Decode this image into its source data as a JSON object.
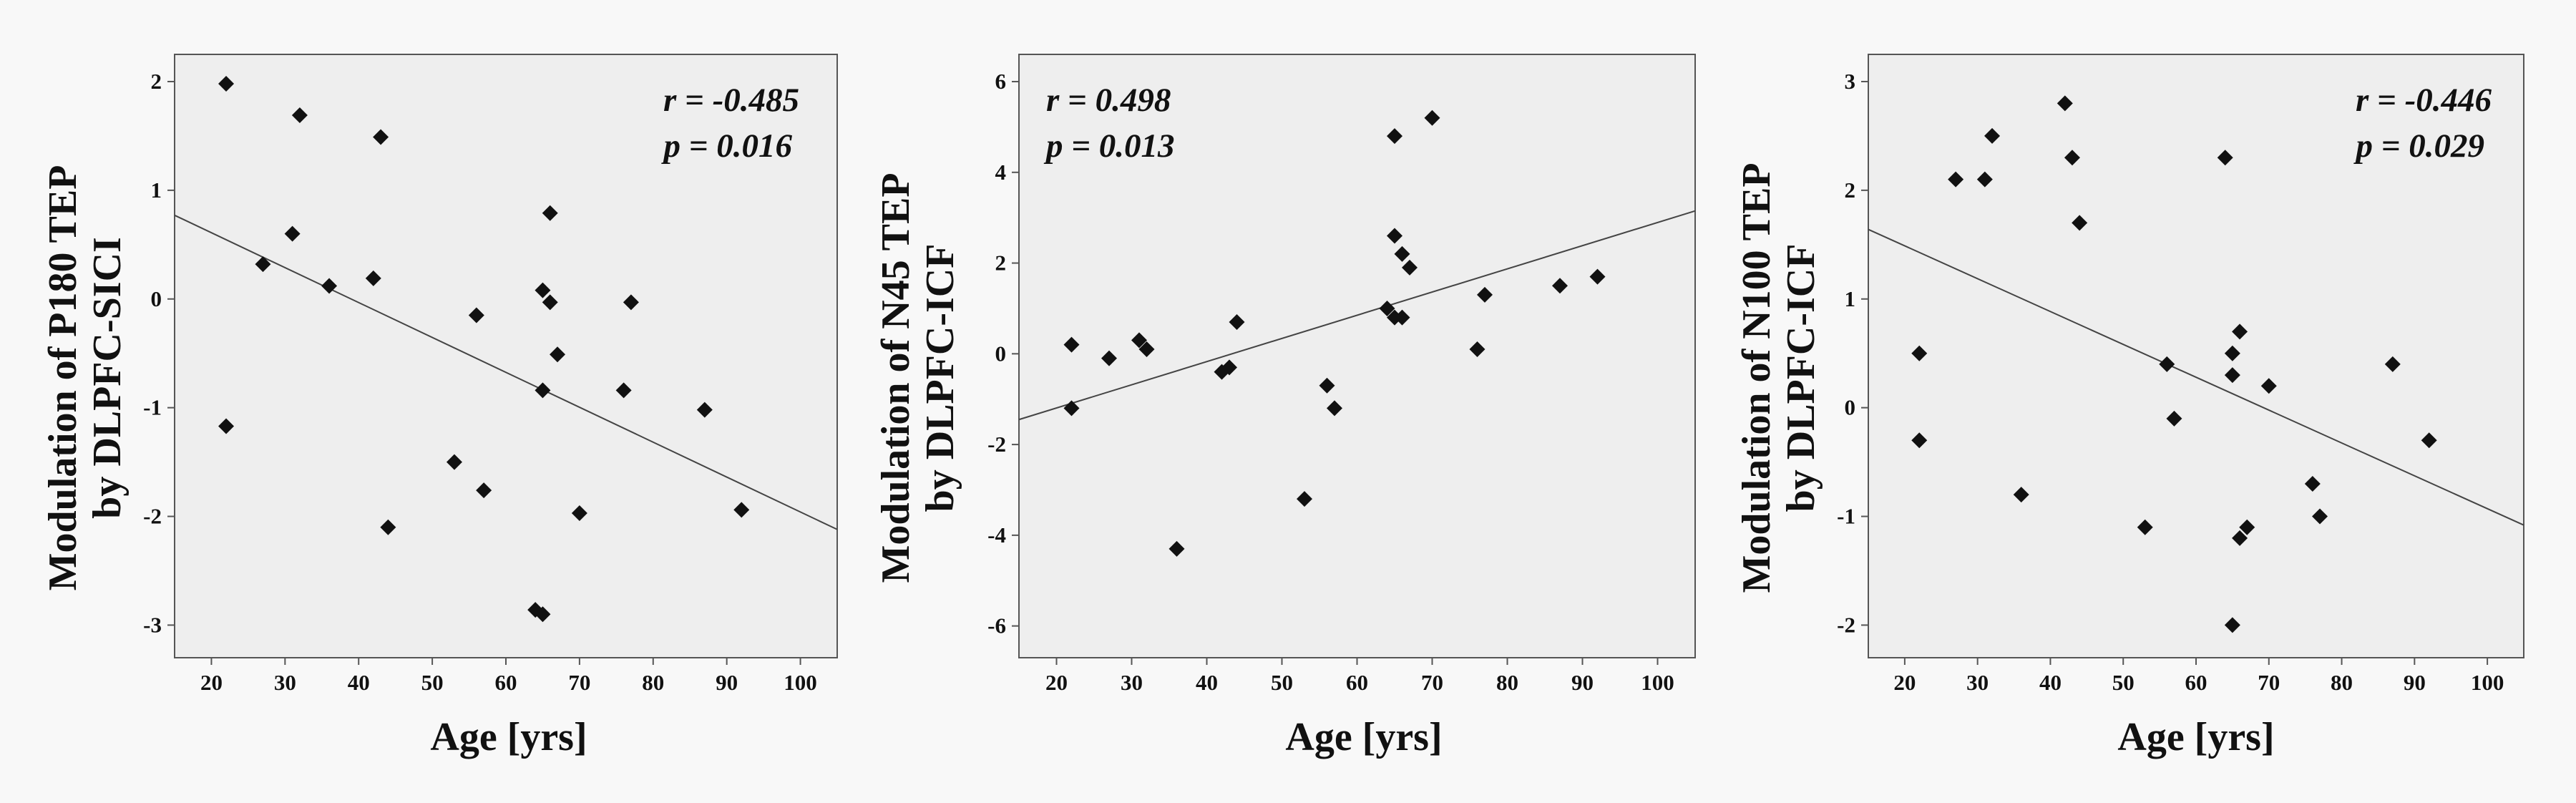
{
  "colors": {
    "page_background": "#f8f8f8",
    "plot_background": "#eeeeee",
    "marker": "#111111",
    "axis": "#555555",
    "fit_line": "#444444"
  },
  "chart_data": [
    {
      "type": "scatter",
      "title": "",
      "xlabel": "Age [yrs]",
      "ylabel_lines": [
        "Modulation of P180 TEP",
        "by DLPFC-SICI"
      ],
      "xlim": [
        15,
        105
      ],
      "ylim": [
        -3.3,
        2.25
      ],
      "xticks": [
        20,
        30,
        40,
        50,
        60,
        70,
        80,
        90,
        100
      ],
      "yticks": [
        -3,
        -2,
        -1,
        0,
        1,
        2
      ],
      "grid": false,
      "marker": "diamond",
      "annotation_lines": [
        "r = -0.485",
        "p = 0.016"
      ],
      "annotation_position": "top-right",
      "fit_line": {
        "x": [
          15,
          105
        ],
        "y": [
          0.77,
          -2.12
        ]
      },
      "points": [
        {
          "x": 22,
          "y": 1.98
        },
        {
          "x": 22,
          "y": -1.17
        },
        {
          "x": 27,
          "y": 0.32
        },
        {
          "x": 31,
          "y": 0.6
        },
        {
          "x": 32,
          "y": 1.69
        },
        {
          "x": 36,
          "y": 0.12
        },
        {
          "x": 42,
          "y": 0.19
        },
        {
          "x": 43,
          "y": 1.49
        },
        {
          "x": 44,
          "y": -2.1
        },
        {
          "x": 53,
          "y": -1.5
        },
        {
          "x": 56,
          "y": -0.15
        },
        {
          "x": 57,
          "y": -1.76
        },
        {
          "x": 64,
          "y": -2.86
        },
        {
          "x": 65,
          "y": -2.9
        },
        {
          "x": 65,
          "y": 0.08
        },
        {
          "x": 65,
          "y": -0.84
        },
        {
          "x": 66,
          "y": 0.79
        },
        {
          "x": 66,
          "y": -0.03
        },
        {
          "x": 67,
          "y": -0.51
        },
        {
          "x": 70,
          "y": -1.97
        },
        {
          "x": 76,
          "y": -0.84
        },
        {
          "x": 77,
          "y": -0.03
        },
        {
          "x": 87,
          "y": -1.02
        },
        {
          "x": 92,
          "y": -1.94
        }
      ]
    },
    {
      "type": "scatter",
      "title": "",
      "xlabel": "Age [yrs]",
      "ylabel_lines": [
        "Modulation of N45 TEP",
        "by DLPFC-ICF"
      ],
      "xlim": [
        15,
        105
      ],
      "ylim": [
        -6.7,
        6.6
      ],
      "xticks": [
        20,
        30,
        40,
        50,
        60,
        70,
        80,
        90,
        100
      ],
      "yticks": [
        -6,
        -4,
        -2,
        0,
        2,
        4,
        6
      ],
      "grid": false,
      "marker": "diamond",
      "annotation_lines": [
        "r = 0.498",
        "p = 0.013"
      ],
      "annotation_position": "top-left",
      "fit_line": {
        "x": [
          15,
          105
        ],
        "y": [
          -1.45,
          3.15
        ]
      },
      "points": [
        {
          "x": 22,
          "y": 0.2
        },
        {
          "x": 22,
          "y": -1.2
        },
        {
          "x": 27,
          "y": -0.1
        },
        {
          "x": 31,
          "y": 0.3
        },
        {
          "x": 32,
          "y": 0.1
        },
        {
          "x": 36,
          "y": -4.3
        },
        {
          "x": 42,
          "y": -0.4
        },
        {
          "x": 43,
          "y": -0.3
        },
        {
          "x": 44,
          "y": 0.7
        },
        {
          "x": 53,
          "y": -3.2
        },
        {
          "x": 56,
          "y": -0.7
        },
        {
          "x": 57,
          "y": -1.2
        },
        {
          "x": 64,
          "y": 1.0
        },
        {
          "x": 65,
          "y": 0.8
        },
        {
          "x": 65,
          "y": 4.8
        },
        {
          "x": 65,
          "y": 2.6
        },
        {
          "x": 66,
          "y": 2.2
        },
        {
          "x": 66,
          "y": 0.8
        },
        {
          "x": 67,
          "y": 1.9
        },
        {
          "x": 70,
          "y": 5.2
        },
        {
          "x": 76,
          "y": 0.1
        },
        {
          "x": 77,
          "y": 1.3
        },
        {
          "x": 87,
          "y": 1.5
        },
        {
          "x": 92,
          "y": 1.7
        }
      ]
    },
    {
      "type": "scatter",
      "title": "",
      "xlabel": "Age [yrs]",
      "ylabel_lines": [
        "Modulation of N100 TEP",
        "by DLPFC-ICF"
      ],
      "xlim": [
        15,
        105
      ],
      "ylim": [
        -2.3,
        3.25
      ],
      "xticks": [
        20,
        30,
        40,
        50,
        60,
        70,
        80,
        90,
        100
      ],
      "yticks": [
        -2,
        -1,
        0,
        1,
        2,
        3
      ],
      "grid": false,
      "marker": "diamond",
      "annotation_lines": [
        "r = -0.446",
        "p = 0.029"
      ],
      "annotation_position": "top-right",
      "fit_line": {
        "x": [
          15,
          105
        ],
        "y": [
          1.64,
          -1.08
        ]
      },
      "points": [
        {
          "x": 22,
          "y": 0.5
        },
        {
          "x": 22,
          "y": -0.3
        },
        {
          "x": 27,
          "y": 2.1
        },
        {
          "x": 31,
          "y": 2.1
        },
        {
          "x": 32,
          "y": 2.5
        },
        {
          "x": 36,
          "y": -0.8
        },
        {
          "x": 42,
          "y": 2.8
        },
        {
          "x": 43,
          "y": 2.3
        },
        {
          "x": 44,
          "y": 1.7
        },
        {
          "x": 53,
          "y": -1.1
        },
        {
          "x": 56,
          "y": 0.4
        },
        {
          "x": 57,
          "y": -0.1
        },
        {
          "x": 64,
          "y": 2.3
        },
        {
          "x": 65,
          "y": 0.5
        },
        {
          "x": 65,
          "y": 0.3
        },
        {
          "x": 65,
          "y": -2.0
        },
        {
          "x": 66,
          "y": 0.7
        },
        {
          "x": 66,
          "y": -1.2
        },
        {
          "x": 67,
          "y": -1.1
        },
        {
          "x": 70,
          "y": 0.2
        },
        {
          "x": 76,
          "y": -0.7
        },
        {
          "x": 77,
          "y": -1.0
        },
        {
          "x": 87,
          "y": 0.4
        },
        {
          "x": 92,
          "y": -0.3
        }
      ]
    }
  ]
}
